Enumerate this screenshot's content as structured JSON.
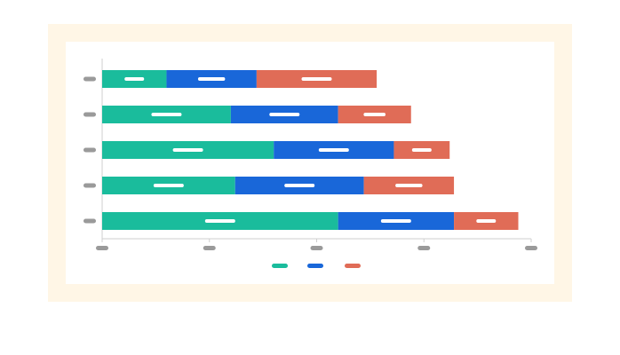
{
  "chart_data": {
    "type": "bar",
    "orientation": "horizontal",
    "stacked": true,
    "title": "",
    "xlabel": "",
    "ylabel": "",
    "categories": [
      "",
      "",
      "",
      "",
      ""
    ],
    "xlim": [
      0,
      100
    ],
    "grid": false,
    "legend_position": "bottom",
    "series": [
      {
        "color": "#1abc9c",
        "values": [
          15,
          30,
          40,
          31,
          55
        ]
      },
      {
        "color": "#1967d9",
        "values": [
          21,
          25,
          28,
          30,
          27
        ]
      },
      {
        "color": "#e06c57",
        "values": [
          28,
          17,
          13,
          21,
          15
        ]
      }
    ]
  },
  "colors": {
    "frame": "#fff6e6",
    "axis": "#cfcfcf",
    "placeholder_text": "#9a9a9a",
    "bar_label": "#ffffff"
  }
}
